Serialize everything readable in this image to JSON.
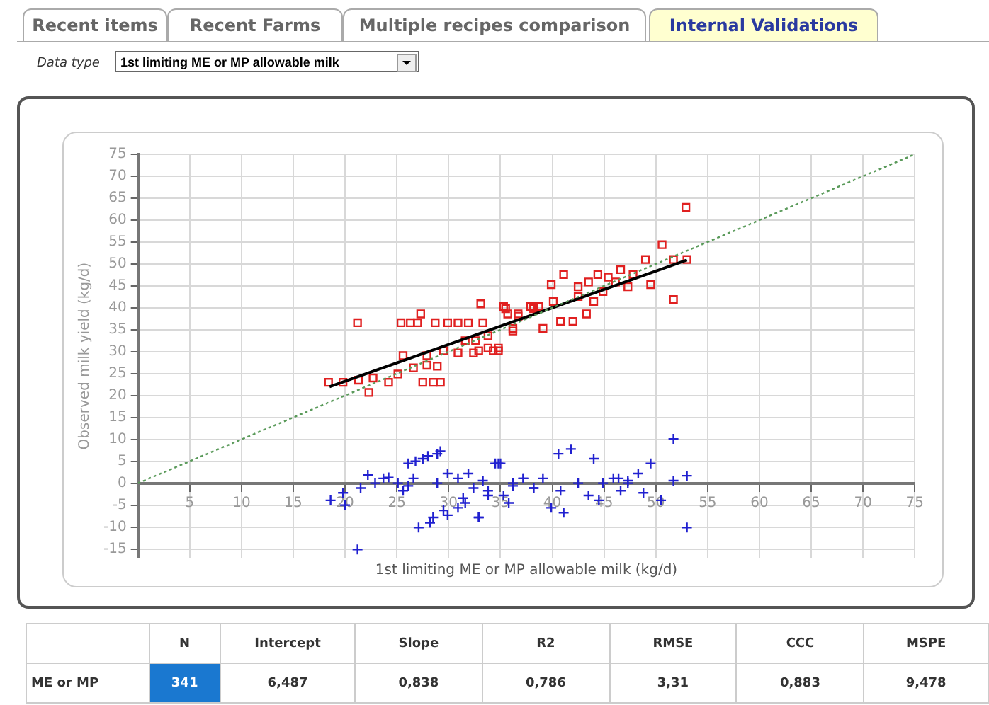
{
  "chart_data": {
    "type": "scatter",
    "xlabel": "1st limiting ME or MP allowable milk (kg/d)",
    "ylabel": "Observed milk yield (kg/d)",
    "xlim": [
      0,
      75
    ],
    "xticks": [
      {
        "value": 0,
        "label": null
      },
      5,
      10,
      15,
      20,
      25,
      30,
      35,
      40,
      45,
      50,
      55,
      60,
      65,
      70,
      75
    ],
    "ylim": [
      -17,
      75
    ],
    "yticks": [
      -15,
      -10,
      -5,
      0,
      5,
      10,
      15,
      20,
      25,
      30,
      35,
      40,
      45,
      50,
      55,
      60,
      65,
      70,
      75
    ],
    "grid": true,
    "legend": false,
    "series": [
      {
        "type": "line",
        "color": "#5a9a5a",
        "marker": "none",
        "line_style": "dotted",
        "x": [
          0,
          75
        ],
        "values": [
          0,
          75
        ]
      },
      {
        "color": "#e02020",
        "marker": "square",
        "x": [
          21.2,
          22.3,
          18.4,
          19.8,
          21.3,
          22.7,
          24.2,
          25.1,
          25.6,
          25.4,
          26.3,
          27.3,
          27,
          27.5,
          28.5,
          29.2,
          26.6,
          27.9,
          28.9,
          27.9,
          28.7,
          29.9,
          30.9,
          29.5,
          30.9,
          31.6,
          32.6,
          31.9,
          33.1,
          33.3,
          33.8,
          34.3,
          34.8,
          32.4,
          35.7,
          35.5,
          36.7,
          36.2,
          37.9,
          52.9,
          50.6,
          49.0,
          51.7,
          53.0,
          51.7,
          49.5,
          47.3,
          46.6,
          44.4,
          45.4,
          43.5,
          42.5,
          41.1,
          39.9,
          44.0,
          43.3,
          40.8,
          42.0,
          39.1,
          38.2,
          36.7,
          36.2,
          35.3,
          34.8,
          33.8,
          32.9,
          40.1,
          38.7,
          44.9,
          46.1,
          47.8,
          42.5
        ],
        "values": [
          36.6,
          20.7,
          23,
          23,
          23.5,
          24,
          23,
          24.9,
          29.1,
          36.6,
          36.6,
          38.6,
          36.6,
          23,
          23,
          23,
          26.3,
          26.9,
          26.7,
          29.1,
          36.6,
          36.6,
          36.6,
          30.2,
          29.7,
          32.5,
          32.5,
          36.6,
          40.9,
          36.6,
          33.6,
          30.2,
          30.2,
          29.7,
          38.6,
          39.8,
          38.1,
          35.3,
          40.3,
          62.9,
          54.4,
          51.0,
          51.0,
          51.0,
          41.9,
          45.3,
          44.8,
          48.7,
          47.6,
          47.0,
          45.9,
          44.8,
          47.6,
          45.3,
          41.4,
          38.6,
          36.9,
          36.9,
          35.3,
          39.8,
          38.6,
          34.7,
          40.3,
          30.8,
          30.8,
          30.2,
          41.4,
          40.3,
          43.7,
          45.9,
          47.6,
          42.6
        ]
      },
      {
        "type": "line",
        "color": "#000000",
        "marker": "none",
        "line_style": "solid",
        "x": [
          18.5,
          53
        ],
        "values": [
          22.0,
          50.9
        ]
      },
      {
        "color": "#2020d0",
        "marker": "cross",
        "x": [
          21.2,
          18.6,
          19.8,
          20,
          21.5,
          22.2,
          22.9,
          23.7,
          24.2,
          25.1,
          25.6,
          26.1,
          26.1,
          26.6,
          26.8,
          27.5,
          28.0,
          28.9,
          29.2,
          27.1,
          28.2,
          28.5,
          29.5,
          29.9,
          30.9,
          31.6,
          32.9,
          31.4,
          28.9,
          29.9,
          30.9,
          31.9,
          32.4,
          33.3,
          33.8,
          34.5,
          35.0,
          35.3,
          36.2,
          37.2,
          38.2,
          51.7,
          53.0,
          51.7,
          53.0,
          50.5,
          49.5,
          48.8,
          48.3,
          47.3,
          46.6,
          45.9,
          44.9,
          44.0,
          43.5,
          44.5,
          42.5,
          41.8,
          40.6,
          40.8,
          39.9,
          41.1,
          39.1,
          38.2,
          37.2,
          36.2,
          34.8,
          33.8,
          32.9,
          35.8,
          46.4,
          47.3
        ],
        "values": [
          -15.1,
          -3.9,
          -2.2,
          -5,
          -1.1,
          1.9,
          0,
          1.1,
          1.3,
          0,
          -1.7,
          -0.6,
          4.5,
          1.1,
          5,
          5.6,
          6.2,
          6.7,
          7.3,
          -10.1,
          -9.0,
          -7.8,
          -6.2,
          -7.3,
          -5.6,
          -4.5,
          -7.8,
          -3.4,
          0,
          2.2,
          1.1,
          2.2,
          -1.1,
          0.6,
          -1.7,
          4.5,
          4.5,
          -2.8,
          0,
          1.1,
          -1.1,
          10.1,
          1.7,
          0.6,
          -10.1,
          -3.9,
          4.5,
          -2.2,
          2.2,
          0.6,
          -1.7,
          1.1,
          0,
          5.6,
          -2.8,
          -3.9,
          0,
          7.8,
          6.7,
          -1.7,
          -5.6,
          -6.7,
          1.1,
          -1.1,
          1.1,
          -0.6,
          4.5,
          -2.8,
          -7.8,
          -4.5,
          1.1,
          0
        ]
      }
    ],
    "annotations": [
      "Recent items",
      "Recent Farms",
      "Multiple recipes comparison",
      "Internal Validations",
      "Data type",
      "1st limiting ME or MP allowable milk",
      "N",
      "Intercept",
      "Slope",
      "R2",
      "RMSE",
      "CCC",
      "MSPE",
      "ME or MP",
      "341",
      "6,487",
      "0,838",
      "0,786",
      "3,31",
      "0,883",
      "9,478"
    ]
  }
}
